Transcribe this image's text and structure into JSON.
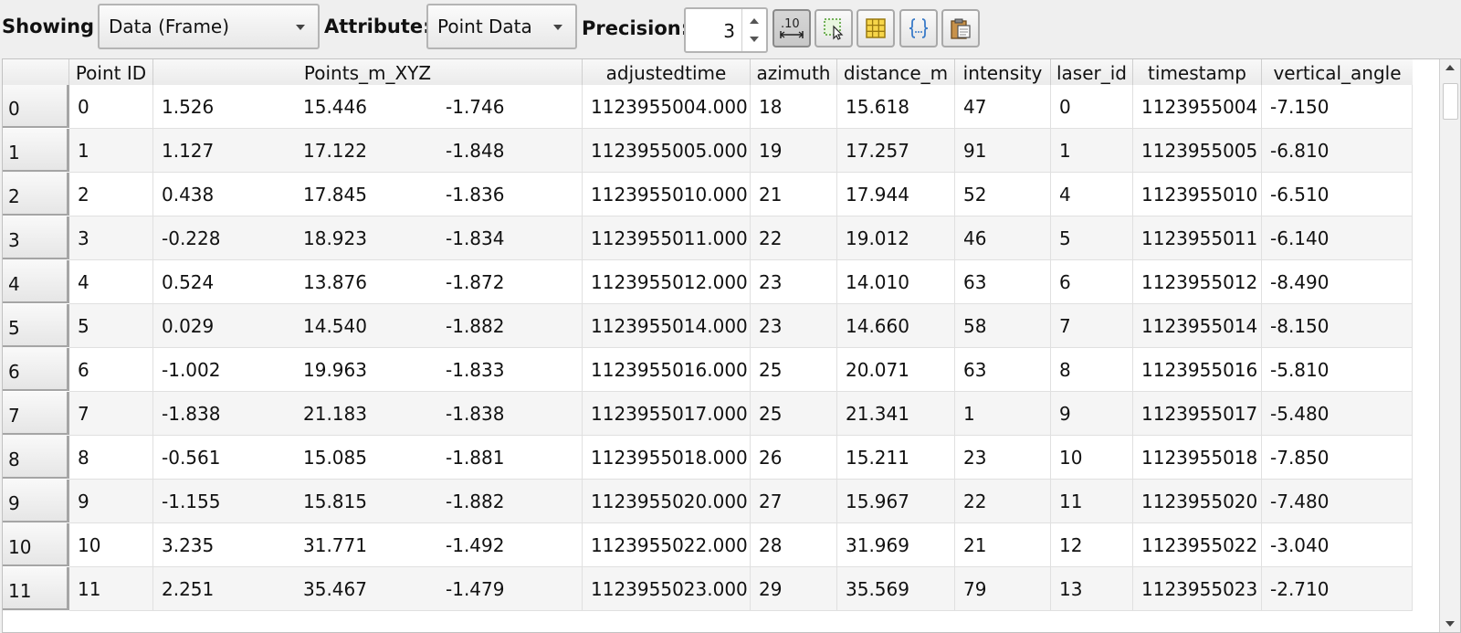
{
  "toolbar": {
    "showing_label": "Showing",
    "showing_value": "Data (Frame)",
    "attribute_label": "Attribute:",
    "attribute_value": "Point Data",
    "precision_label": "Precision:",
    "precision_value": "3",
    "buttons": [
      {
        "name": "toggle-column-visibility-icon"
      },
      {
        "name": "select-cells-icon"
      },
      {
        "name": "spreadsheet-icon"
      },
      {
        "name": "braces-icon"
      },
      {
        "name": "copy-to-clipboard-icon"
      }
    ],
    "precision_button_glyph": ".10"
  },
  "table": {
    "columns": [
      "Point ID",
      "Points_m_XYZ",
      "adjustedtime",
      "azimuth",
      "distance_m",
      "intensity",
      "laser_id",
      "timestamp",
      "vertical_angle"
    ],
    "rows": [
      {
        "index": "0",
        "cells": [
          "0",
          "1.526",
          "15.446",
          "-1.746",
          "1123955004.000",
          "18",
          "15.618",
          "47",
          "0",
          "1123955004",
          "-7.150"
        ]
      },
      {
        "index": "1",
        "cells": [
          "1",
          "1.127",
          "17.122",
          "-1.848",
          "1123955005.000",
          "19",
          "17.257",
          "91",
          "1",
          "1123955005",
          "-6.810"
        ]
      },
      {
        "index": "2",
        "cells": [
          "2",
          "0.438",
          "17.845",
          "-1.836",
          "1123955010.000",
          "21",
          "17.944",
          "52",
          "4",
          "1123955010",
          "-6.510"
        ]
      },
      {
        "index": "3",
        "cells": [
          "3",
          "-0.228",
          "18.923",
          "-1.834",
          "1123955011.000",
          "22",
          "19.012",
          "46",
          "5",
          "1123955011",
          "-6.140"
        ]
      },
      {
        "index": "4",
        "cells": [
          "4",
          "0.524",
          "13.876",
          "-1.872",
          "1123955012.000",
          "23",
          "14.010",
          "63",
          "6",
          "1123955012",
          "-8.490"
        ]
      },
      {
        "index": "5",
        "cells": [
          "5",
          "0.029",
          "14.540",
          "-1.882",
          "1123955014.000",
          "23",
          "14.660",
          "58",
          "7",
          "1123955014",
          "-8.150"
        ]
      },
      {
        "index": "6",
        "cells": [
          "6",
          "-1.002",
          "19.963",
          "-1.833",
          "1123955016.000",
          "25",
          "20.071",
          "63",
          "8",
          "1123955016",
          "-5.810"
        ]
      },
      {
        "index": "7",
        "cells": [
          "7",
          "-1.838",
          "21.183",
          "-1.838",
          "1123955017.000",
          "25",
          "21.341",
          "1",
          "9",
          "1123955017",
          "-5.480"
        ]
      },
      {
        "index": "8",
        "cells": [
          "8",
          "-0.561",
          "15.085",
          "-1.881",
          "1123955018.000",
          "26",
          "15.211",
          "23",
          "10",
          "1123955018",
          "-7.850"
        ]
      },
      {
        "index": "9",
        "cells": [
          "9",
          "-1.155",
          "15.815",
          "-1.882",
          "1123955020.000",
          "27",
          "15.967",
          "22",
          "11",
          "1123955020",
          "-7.480"
        ]
      },
      {
        "index": "10",
        "cells": [
          "10",
          "3.235",
          "31.771",
          "-1.492",
          "1123955022.000",
          "28",
          "31.969",
          "21",
          "12",
          "1123955022",
          "-3.040"
        ]
      },
      {
        "index": "11",
        "cells": [
          "11",
          "2.251",
          "35.467",
          "-1.479",
          "1123955023.000",
          "29",
          "35.569",
          "79",
          "13",
          "1123955023",
          "-2.710"
        ]
      }
    ]
  }
}
